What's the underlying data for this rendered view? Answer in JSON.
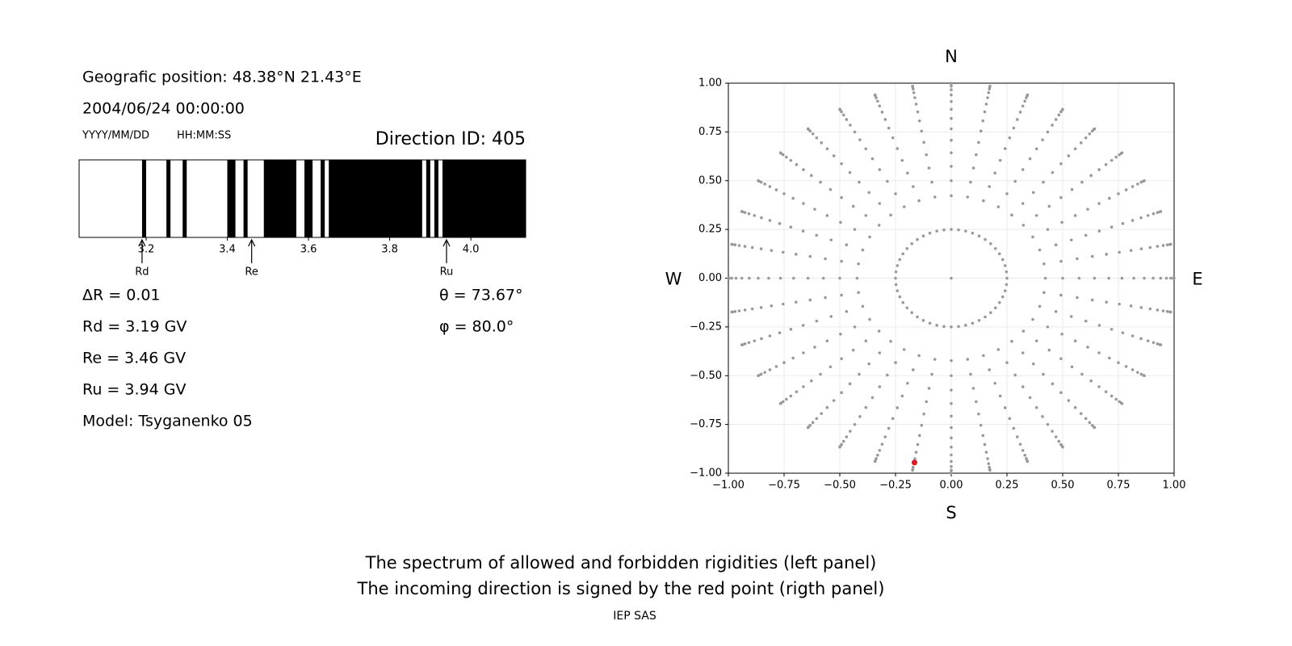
{
  "header": {
    "position": "Geografic position: 48.38°N 21.43°E",
    "datetime": "2004/06/24 00:00:00",
    "date_format": "YYYY/MM/DD",
    "time_format": "HH:MM:SS"
  },
  "info_left": [
    "ΔR = 0.01",
    "Rd = 3.19 GV",
    "Re = 3.46 GV",
    "Ru = 3.94 GV",
    "Model: Tsyganenko 05"
  ],
  "info_right": [
    "θ = 73.67°",
    "φ = 80.0°"
  ],
  "caption": [
    "The spectrum of allowed and forbidden rigidities (left panel)",
    "The incoming direction is signed by the red point (rigth panel)"
  ],
  "footer": "IEP SAS",
  "chart_data": [
    {
      "type": "spectrum",
      "title": "Direction ID: 405",
      "color": "#000000",
      "xlim": [
        3.035,
        4.135
      ],
      "xticks": [
        3.2,
        3.4,
        3.6,
        3.8,
        {
          "value": 4,
          "label": "4.0"
        }
      ],
      "forbidden": [
        [
          3.19,
          3.2
        ],
        [
          3.25,
          3.26
        ],
        [
          3.29,
          3.3
        ],
        [
          3.4,
          3.42
        ],
        [
          3.44,
          3.45
        ],
        [
          3.49,
          3.57
        ],
        [
          3.59,
          3.61
        ],
        [
          3.63,
          3.64
        ],
        [
          3.65,
          3.88
        ],
        [
          3.89,
          3.9
        ],
        [
          3.91,
          3.92
        ],
        [
          3.93,
          4.135
        ]
      ],
      "markers": [
        {
          "label": "Rd",
          "value": 3.19
        },
        {
          "label": "Re",
          "value": 3.46
        },
        {
          "label": "Ru",
          "value": 3.94
        }
      ]
    },
    {
      "type": "direction-grid",
      "grid": true,
      "compass": {
        "top": "N",
        "bottom": "S",
        "left": "W",
        "right": "E"
      },
      "xlim": [
        -1,
        1
      ],
      "ylim": [
        -1,
        1
      ],
      "xticks": [
        {
          "value": -1,
          "label": "−1.00"
        },
        {
          "value": -0.75,
          "label": "−0.75"
        },
        {
          "value": -0.5,
          "label": "−0.50"
        },
        {
          "value": -0.25,
          "label": "−0.25"
        },
        {
          "value": 0,
          "label": "0.00"
        },
        {
          "value": 0.25,
          "label": "0.25"
        },
        {
          "value": 0.5,
          "label": "0.50"
        },
        {
          "value": 0.75,
          "label": "0.75"
        },
        {
          "value": 1,
          "label": "1.00"
        }
      ],
      "yticks": [
        {
          "value": -1,
          "label": "−1.00"
        },
        {
          "value": -0.75,
          "label": "−0.75"
        },
        {
          "value": -0.5,
          "label": "−0.50"
        },
        {
          "value": -0.25,
          "label": "−0.25"
        },
        {
          "value": 0,
          "label": "0.00"
        },
        {
          "value": 0.25,
          "label": "0.25"
        },
        {
          "value": 0.5,
          "label": "0.50"
        },
        {
          "value": 0.75,
          "label": "0.75"
        },
        {
          "value": 1,
          "label": "1.00"
        }
      ],
      "grid_series": [
        {
          "color": "#999999",
          "radius": [
            0
          ],
          "azimuth": [
            0
          ]
        },
        {
          "color": "#999999",
          "radius": [
            0.25
          ],
          "azimuth": [
            0,
            7.5,
            15,
            22.5,
            30,
            37.5,
            45,
            52.5,
            60,
            67.5,
            75,
            82.5,
            90,
            97.5,
            105,
            112.5,
            120,
            127.5,
            135,
            142.5,
            150,
            157.5,
            165,
            172.5,
            180,
            187.5,
            195,
            202.5,
            210,
            217.5,
            225,
            232.5,
            240,
            247.5,
            255,
            262.5,
            270,
            277.5,
            285,
            292.5,
            300,
            307.5,
            315,
            322.5,
            330,
            337.5,
            345,
            352.5
          ]
        },
        {
          "color": "#999999",
          "radius": [
            0.4226,
            0.5,
            0.5736,
            0.6428,
            0.7071,
            0.766,
            0.8192,
            0.866,
            0.9063,
            0.9397,
            0.9659,
            0.9848,
            0.9962,
            1
          ],
          "azimuth": [
            0,
            10,
            20,
            30,
            40,
            50,
            60,
            70,
            80,
            90,
            100,
            110,
            120,
            130,
            140,
            150,
            160,
            170,
            180,
            190,
            200,
            210,
            220,
            230,
            240,
            250,
            260,
            270,
            280,
            290,
            300,
            310,
            320,
            330,
            340,
            350
          ]
        }
      ],
      "highlight": {
        "color": "#e8141b",
        "x": -0.165,
        "y": -0.945
      }
    }
  ]
}
